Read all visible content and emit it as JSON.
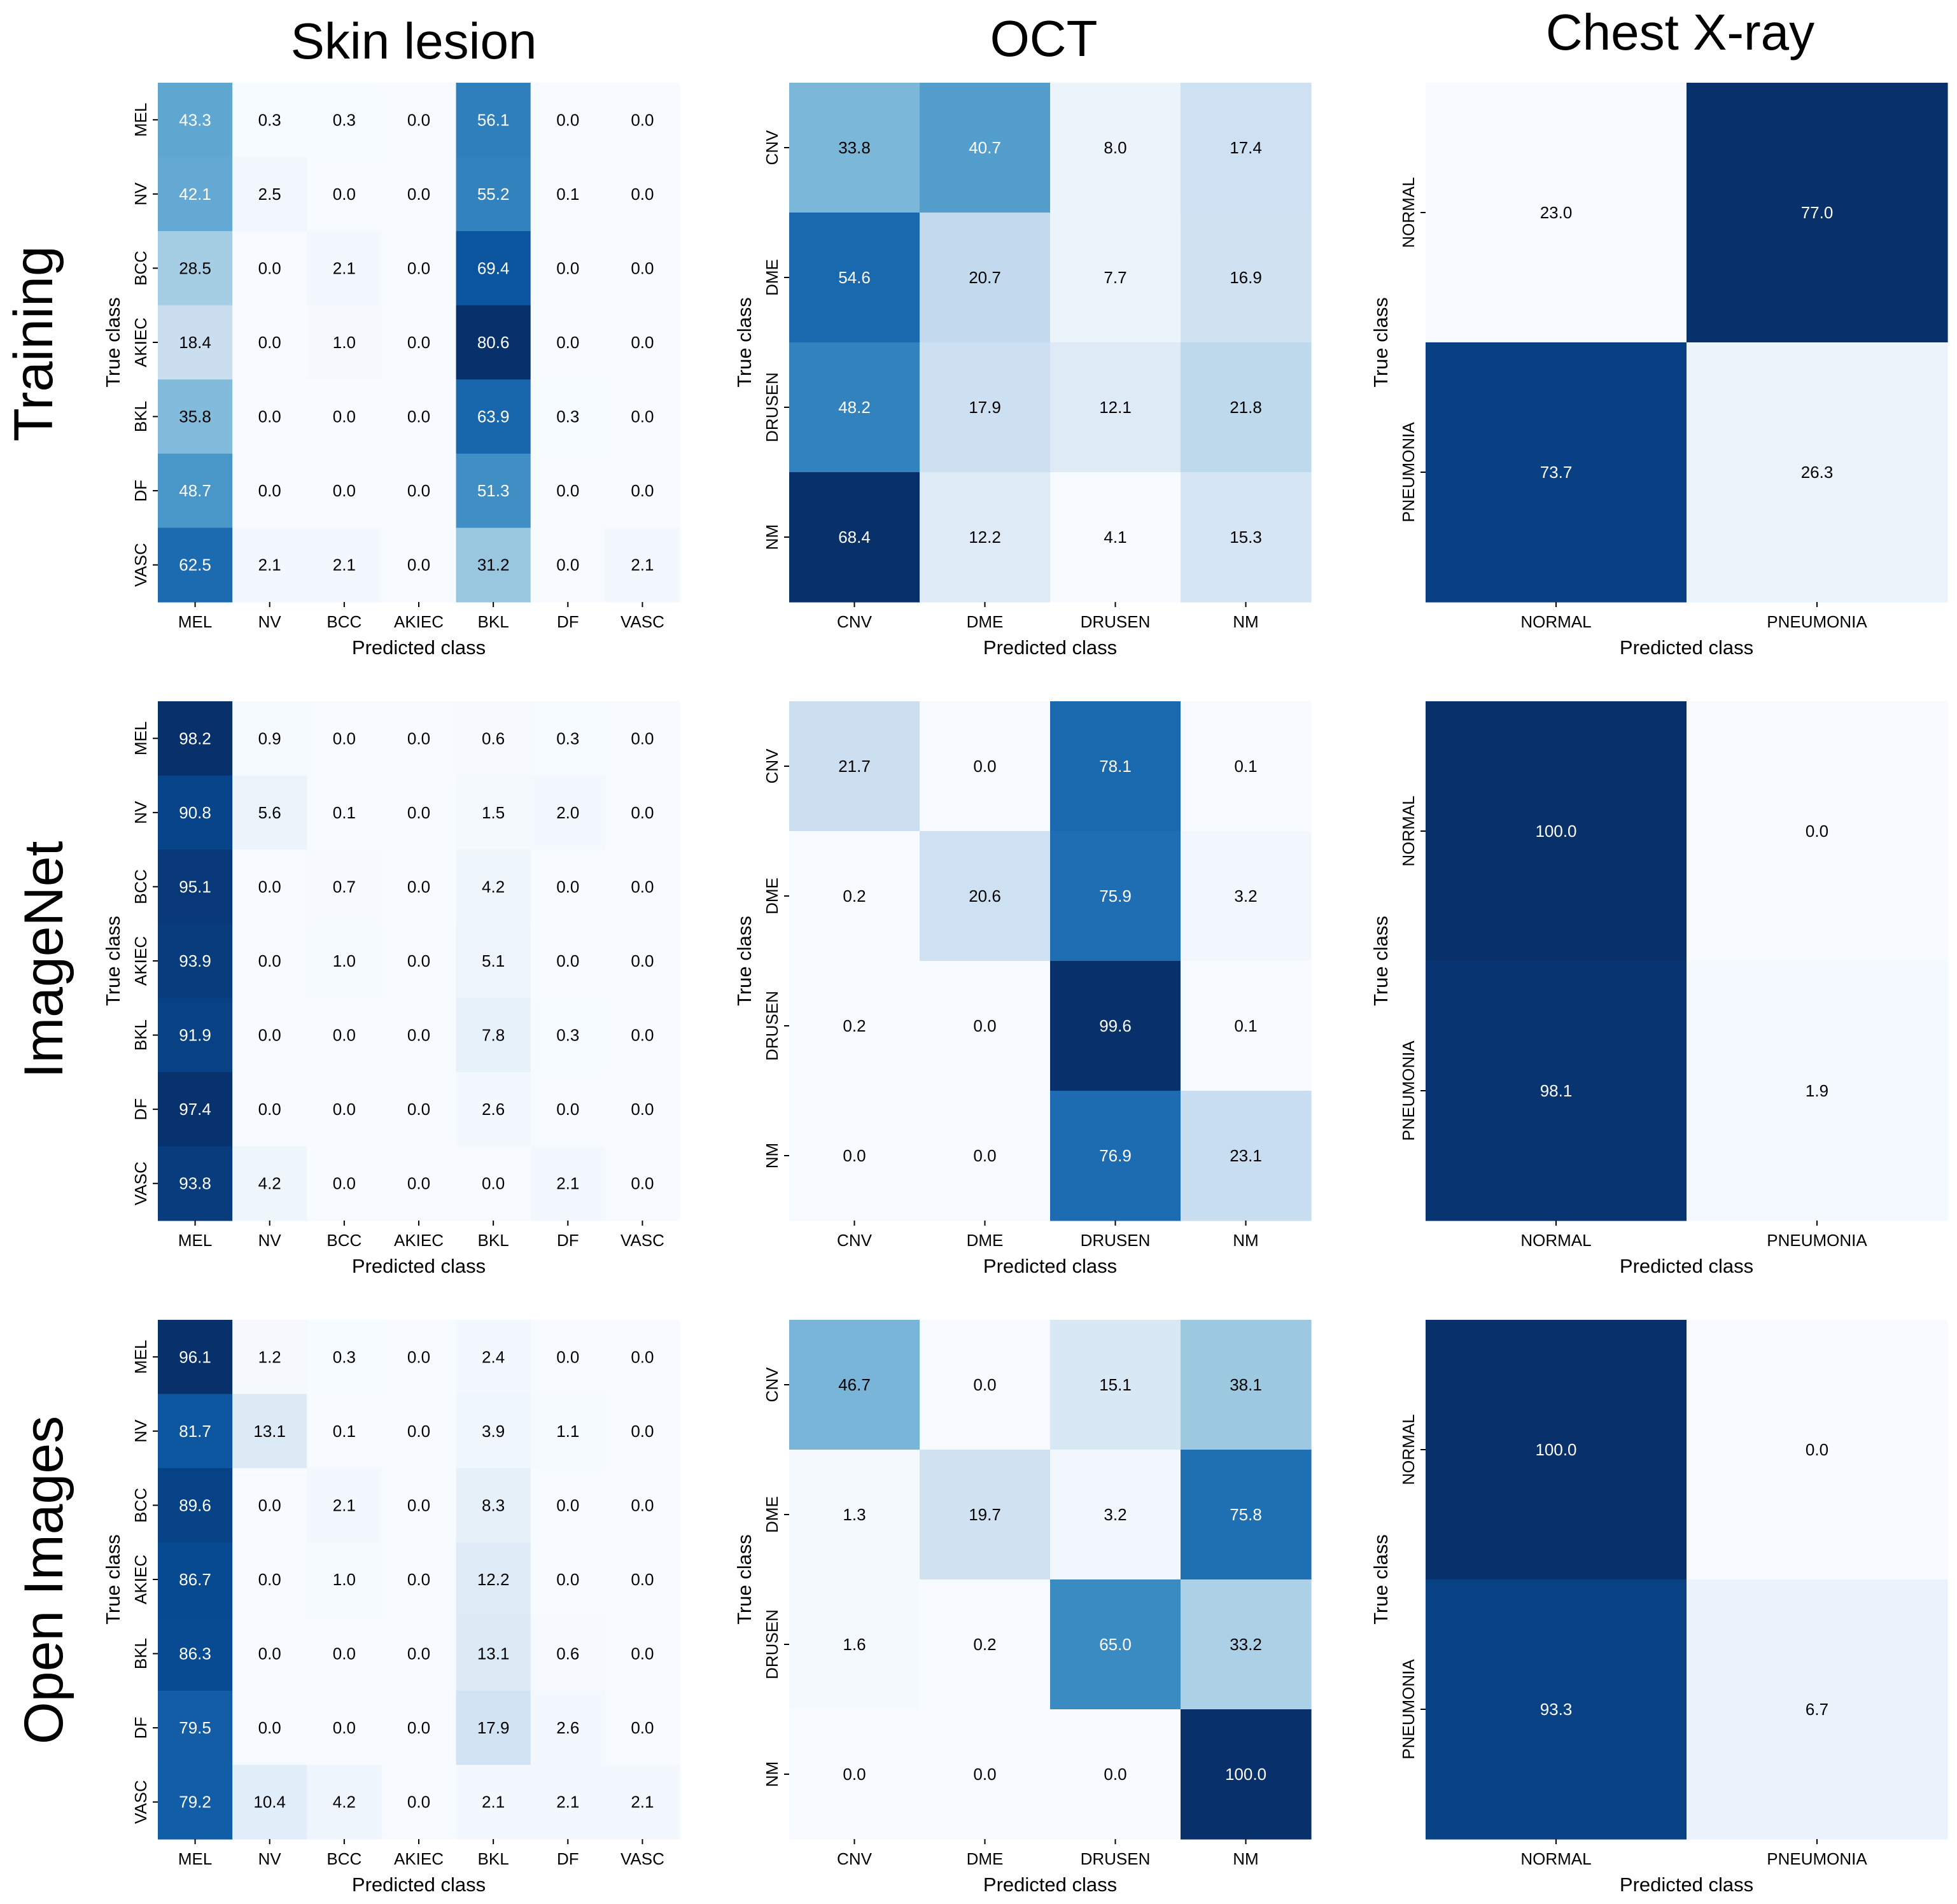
{
  "figure": {
    "column_titles": [
      "Skin lesion",
      "OCT",
      "Chest X-ray"
    ],
    "row_titles": [
      "Training",
      "ImageNet",
      "Open Images"
    ]
  },
  "colors": {
    "cmap_low": "#f7fbff",
    "cmap_high": "#08306b",
    "text_dark": "#000000",
    "text_light": "#ffffff"
  },
  "chart_data": [
    {
      "type": "heatmap",
      "row": "Training",
      "column": "Skin lesion",
      "xlabel": "Predicted class",
      "ylabel": "True class",
      "labels": [
        "MEL",
        "NV",
        "BCC",
        "AKIEC",
        "BKL",
        "DF",
        "VASC"
      ],
      "values": [
        [
          43.3,
          0.3,
          0.3,
          0.0,
          56.1,
          0.0,
          0.0
        ],
        [
          42.1,
          2.5,
          0.0,
          0.0,
          55.2,
          0.1,
          0.0
        ],
        [
          28.5,
          0.0,
          2.1,
          0.0,
          69.4,
          0.0,
          0.0
        ],
        [
          18.4,
          0.0,
          1.0,
          0.0,
          80.6,
          0.0,
          0.0
        ],
        [
          35.8,
          0.0,
          0.0,
          0.0,
          63.9,
          0.3,
          0.0
        ],
        [
          48.7,
          0.0,
          0.0,
          0.0,
          51.3,
          0.0,
          0.0
        ],
        [
          62.5,
          2.1,
          2.1,
          0.0,
          31.2,
          0.0,
          2.1
        ]
      ]
    },
    {
      "type": "heatmap",
      "row": "Training",
      "column": "OCT",
      "xlabel": "Predicted class",
      "ylabel": "True class",
      "labels": [
        "CNV",
        "DME",
        "DRUSEN",
        "NM"
      ],
      "values": [
        [
          33.8,
          40.7,
          8.0,
          17.4
        ],
        [
          54.6,
          20.7,
          7.7,
          16.9
        ],
        [
          48.2,
          17.9,
          12.1,
          21.8
        ],
        [
          68.4,
          12.2,
          4.1,
          15.3
        ]
      ]
    },
    {
      "type": "heatmap",
      "row": "Training",
      "column": "Chest X-ray",
      "xlabel": "Predicted class",
      "ylabel": "True class",
      "labels": [
        "NORMAL",
        "PNEUMONIA"
      ],
      "values": [
        [
          23.0,
          77.0
        ],
        [
          73.7,
          26.3
        ]
      ]
    },
    {
      "type": "heatmap",
      "row": "ImageNet",
      "column": "Skin lesion",
      "xlabel": "Predicted class",
      "ylabel": "True class",
      "labels": [
        "MEL",
        "NV",
        "BCC",
        "AKIEC",
        "BKL",
        "DF",
        "VASC"
      ],
      "values": [
        [
          98.2,
          0.9,
          0.0,
          0.0,
          0.6,
          0.3,
          0.0
        ],
        [
          90.8,
          5.6,
          0.1,
          0.0,
          1.5,
          2.0,
          0.0
        ],
        [
          95.1,
          0.0,
          0.7,
          0.0,
          4.2,
          0.0,
          0.0
        ],
        [
          93.9,
          0.0,
          1.0,
          0.0,
          5.1,
          0.0,
          0.0
        ],
        [
          91.9,
          0.0,
          0.0,
          0.0,
          7.8,
          0.3,
          0.0
        ],
        [
          97.4,
          0.0,
          0.0,
          0.0,
          2.6,
          0.0,
          0.0
        ],
        [
          93.8,
          4.2,
          0.0,
          0.0,
          0.0,
          2.1,
          0.0
        ]
      ]
    },
    {
      "type": "heatmap",
      "row": "ImageNet",
      "column": "OCT",
      "xlabel": "Predicted class",
      "ylabel": "True class",
      "labels": [
        "CNV",
        "DME",
        "DRUSEN",
        "NM"
      ],
      "values": [
        [
          21.7,
          0.0,
          78.1,
          0.1
        ],
        [
          0.2,
          20.6,
          75.9,
          3.2
        ],
        [
          0.2,
          0.0,
          99.6,
          0.1
        ],
        [
          0.0,
          0.0,
          76.9,
          23.1
        ]
      ]
    },
    {
      "type": "heatmap",
      "row": "ImageNet",
      "column": "Chest X-ray",
      "xlabel": "Predicted class",
      "ylabel": "True class",
      "labels": [
        "NORMAL",
        "PNEUMONIA"
      ],
      "values": [
        [
          100.0,
          0.0
        ],
        [
          98.1,
          1.9
        ]
      ]
    },
    {
      "type": "heatmap",
      "row": "Open Images",
      "column": "Skin lesion",
      "xlabel": "Predicted class",
      "ylabel": "True class",
      "labels": [
        "MEL",
        "NV",
        "BCC",
        "AKIEC",
        "BKL",
        "DF",
        "VASC"
      ],
      "values": [
        [
          96.1,
          1.2,
          0.3,
          0.0,
          2.4,
          0.0,
          0.0
        ],
        [
          81.7,
          13.1,
          0.1,
          0.0,
          3.9,
          1.1,
          0.0
        ],
        [
          89.6,
          0.0,
          2.1,
          0.0,
          8.3,
          0.0,
          0.0
        ],
        [
          86.7,
          0.0,
          1.0,
          0.0,
          12.2,
          0.0,
          0.0
        ],
        [
          86.3,
          0.0,
          0.0,
          0.0,
          13.1,
          0.6,
          0.0
        ],
        [
          79.5,
          0.0,
          0.0,
          0.0,
          17.9,
          2.6,
          0.0
        ],
        [
          79.2,
          10.4,
          4.2,
          0.0,
          2.1,
          2.1,
          2.1
        ]
      ]
    },
    {
      "type": "heatmap",
      "row": "Open Images",
      "column": "OCT",
      "xlabel": "Predicted class",
      "ylabel": "True class",
      "labels": [
        "CNV",
        "DME",
        "DRUSEN",
        "NM"
      ],
      "values": [
        [
          46.7,
          0.0,
          15.1,
          38.1
        ],
        [
          1.3,
          19.7,
          3.2,
          75.8
        ],
        [
          1.6,
          0.2,
          65.0,
          33.2
        ],
        [
          0.0,
          0.0,
          0.0,
          100.0
        ]
      ]
    },
    {
      "type": "heatmap",
      "row": "Open Images",
      "column": "Chest X-ray",
      "xlabel": "Predicted class",
      "ylabel": "True class",
      "labels": [
        "NORMAL",
        "PNEUMONIA"
      ],
      "values": [
        [
          100.0,
          0.0
        ],
        [
          93.3,
          6.7
        ]
      ]
    }
  ]
}
